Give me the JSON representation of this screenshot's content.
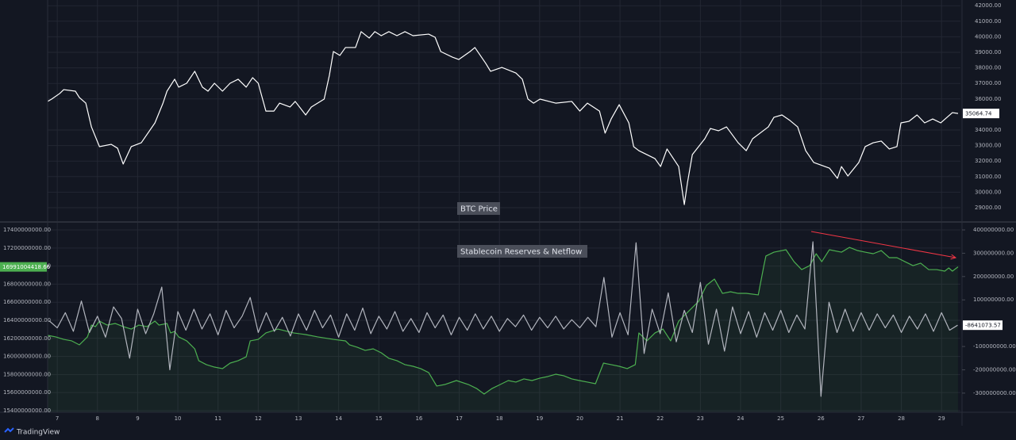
{
  "chart_data": [
    {
      "type": "line",
      "title": "BTC Price",
      "color": "#ffffff",
      "x": [
        6.76,
        6.86,
        7.06,
        7.16,
        7.45,
        7.55,
        7.71,
        7.85,
        8.05,
        8.34,
        8.5,
        8.64,
        8.84,
        9.09,
        9.43,
        9.63,
        9.73,
        9.92,
        10.02,
        10.22,
        10.42,
        10.61,
        10.75,
        10.91,
        11.11,
        11.3,
        11.5,
        11.7,
        11.86,
        12.0,
        12.19,
        12.39,
        12.53,
        12.79,
        12.92,
        13.18,
        13.32,
        13.64,
        13.77,
        13.87,
        14.03,
        14.17,
        14.42,
        14.56,
        14.76,
        14.9,
        15.06,
        15.25,
        15.45,
        15.65,
        15.85,
        16.24,
        16.4,
        16.54,
        16.83,
        16.99,
        17.27,
        17.39,
        17.66,
        17.78,
        18.06,
        18.41,
        18.57,
        18.71,
        18.85,
        19.01,
        19.4,
        19.8,
        20.0,
        20.19,
        20.49,
        20.63,
        20.78,
        20.98,
        21.22,
        21.34,
        21.47,
        21.87,
        22.01,
        22.17,
        22.46,
        22.6,
        22.68,
        22.8,
        23.11,
        23.25,
        23.45,
        23.65,
        23.94,
        24.14,
        24.3,
        24.69,
        24.83,
        25.03,
        25.23,
        25.42,
        25.62,
        25.82,
        26.21,
        26.41,
        26.51,
        26.67,
        26.94,
        27.1,
        27.3,
        27.5,
        27.7,
        27.89,
        27.99,
        28.19,
        28.39,
        28.58,
        28.78,
        28.98,
        29.27,
        29.41
      ],
      "values": [
        35840,
        35990,
        36350,
        36600,
        36500,
        36090,
        35730,
        34200,
        32930,
        33080,
        32830,
        31810,
        32930,
        33180,
        34460,
        35730,
        36500,
        37270,
        36760,
        37010,
        37780,
        36760,
        36500,
        37010,
        36500,
        37010,
        37270,
        36760,
        37370,
        37010,
        35220,
        35220,
        35730,
        35480,
        35840,
        34970,
        35480,
        35990,
        37520,
        39050,
        38800,
        39310,
        39310,
        40330,
        39920,
        40330,
        40070,
        40330,
        40070,
        40330,
        40070,
        40170,
        39970,
        39050,
        38690,
        38540,
        39050,
        39310,
        38290,
        37780,
        38030,
        37670,
        37270,
        35990,
        35730,
        35990,
        35730,
        35840,
        35220,
        35730,
        35220,
        33800,
        34710,
        35630,
        34460,
        32930,
        32670,
        32160,
        31650,
        32780,
        31650,
        29200,
        30630,
        32420,
        33440,
        34100,
        33950,
        34200,
        33180,
        32670,
        33440,
        34200,
        34820,
        34970,
        34610,
        34200,
        32670,
        31910,
        31550,
        30890,
        31650,
        31040,
        31910,
        32930,
        33180,
        33290,
        32780,
        32930,
        34460,
        34560,
        34970,
        34460,
        34710,
        34460,
        35120,
        35064.74
      ],
      "ylim": [
        28082,
        42367
      ],
      "yticks": [
        {
          "value": 29000,
          "label": "29000.00"
        },
        {
          "value": 30000,
          "label": "30000.00"
        },
        {
          "value": 31000,
          "label": "31000.00"
        },
        {
          "value": 32000,
          "label": "32000.00"
        },
        {
          "value": 33000,
          "label": "33000.00"
        },
        {
          "value": 34000,
          "label": "34000.00"
        },
        {
          "value": 36000,
          "label": "36000.00"
        },
        {
          "value": 37000,
          "label": "37000.00"
        },
        {
          "value": 38000,
          "label": "38000.00"
        },
        {
          "value": 39000,
          "label": "39000.00"
        },
        {
          "value": 40000,
          "label": "40000.00"
        },
        {
          "value": 41000,
          "label": "41000.00"
        },
        {
          "value": 42000,
          "label": "42000.00"
        }
      ],
      "grid": true
    },
    {
      "type": "line",
      "title": "Stablecoin Reserves & Netflow",
      "xlim": [
        6.76,
        29.47
      ],
      "xticks": [
        7,
        8,
        9,
        10,
        11,
        12,
        13,
        14,
        15,
        16,
        17,
        18,
        19,
        20,
        21,
        22,
        23,
        24,
        25,
        26,
        27,
        28,
        29
      ],
      "ylim": [
        15382000000,
        17488000000
      ],
      "yticks": [
        {
          "value": 15400000000,
          "label": "15400000000.00"
        },
        {
          "value": 15600000000,
          "label": "15600000000.00"
        },
        {
          "value": 15800000000,
          "label": "15800000000.00"
        },
        {
          "value": 16000000000,
          "label": "16000000000.00"
        },
        {
          "value": 16200000000,
          "label": "16200000000.00"
        },
        {
          "value": 16400000000,
          "label": "16400000000.00"
        },
        {
          "value": 16600000000,
          "label": "16600000000.00"
        },
        {
          "value": 16800000000,
          "label": "16800000000.00"
        },
        {
          "value": 17000000000,
          "label": "17000000000.00"
        },
        {
          "value": 17200000000,
          "label": "17200000000.00"
        },
        {
          "value": 17400000000,
          "label": "17400000000.00"
        }
      ],
      "y2lim": [
        -382000000,
        434000000
      ],
      "y2ticks": [
        {
          "value": -300000000,
          "label": "-300000000.00"
        },
        {
          "value": -200000000,
          "label": "-200000000.00"
        },
        {
          "value": -100000000,
          "label": "-100000000.00"
        },
        {
          "value": 100000000,
          "label": "100000000.00"
        },
        {
          "value": 200000000,
          "label": "200000000.00"
        },
        {
          "value": 300000000,
          "label": "300000000.00"
        },
        {
          "value": 400000000,
          "label": "400000000.00"
        }
      ],
      "grid": true,
      "series": [
        {
          "color": "#4caf50",
          "area": true,
          "x": [
            6.76,
            6.96,
            7.16,
            7.36,
            7.55,
            7.75,
            7.85,
            7.95,
            8.05,
            8.24,
            8.44,
            8.64,
            8.84,
            9.03,
            9.23,
            9.43,
            9.53,
            9.73,
            9.82,
            9.92,
            10.02,
            10.22,
            10.32,
            10.42,
            10.52,
            10.71,
            10.91,
            11.11,
            11.3,
            11.5,
            11.7,
            11.8,
            12.0,
            12.19,
            12.49,
            12.88,
            13.18,
            13.48,
            13.87,
            14.17,
            14.27,
            14.46,
            14.66,
            14.86,
            15.06,
            15.25,
            15.45,
            15.65,
            15.85,
            16.04,
            16.24,
            16.44,
            16.64,
            16.93,
            17.23,
            17.43,
            17.62,
            17.82,
            18.02,
            18.22,
            18.41,
            18.61,
            18.81,
            19.01,
            19.2,
            19.4,
            19.6,
            19.8,
            19.99,
            20.19,
            20.39,
            20.59,
            20.78,
            20.98,
            21.18,
            21.38,
            21.47,
            21.67,
            21.87,
            22.07,
            22.26,
            22.46,
            22.56,
            22.76,
            22.96,
            23.15,
            23.35,
            23.55,
            23.75,
            23.94,
            24.14,
            24.44,
            24.58,
            24.63,
            24.83,
            25.13,
            25.33,
            25.52,
            25.72,
            25.88,
            26.02,
            26.21,
            26.51,
            26.71,
            26.91,
            27.1,
            27.3,
            27.5,
            27.7,
            27.89,
            28.09,
            28.29,
            28.48,
            28.68,
            28.88,
            29.08,
            29.18,
            29.27,
            29.41
          ],
          "values": [
            16233000000,
            16216000000,
            16189000000,
            16172000000,
            16128000000,
            16216000000,
            16347000000,
            16330000000,
            16391000000,
            16347000000,
            16365000000,
            16330000000,
            16303000000,
            16347000000,
            16330000000,
            16391000000,
            16347000000,
            16365000000,
            16260000000,
            16277000000,
            16216000000,
            16172000000,
            16128000000,
            16084000000,
            15953000000,
            15909000000,
            15882000000,
            15865000000,
            15926000000,
            15953000000,
            15996000000,
            16172000000,
            16189000000,
            16260000000,
            16303000000,
            16260000000,
            16242000000,
            16216000000,
            16189000000,
            16172000000,
            16128000000,
            16102000000,
            16067000000,
            16084000000,
            16040000000,
            15979000000,
            15953000000,
            15909000000,
            15891000000,
            15865000000,
            15821000000,
            15672000000,
            15689000000,
            15733000000,
            15689000000,
            15646000000,
            15584000000,
            15646000000,
            15689000000,
            15733000000,
            15716000000,
            15751000000,
            15733000000,
            15760000000,
            15777000000,
            15803000000,
            15786000000,
            15751000000,
            15733000000,
            15716000000,
            15698000000,
            15926000000,
            15909000000,
            15891000000,
            15865000000,
            15909000000,
            16260000000,
            16172000000,
            16260000000,
            16303000000,
            16172000000,
            16391000000,
            16435000000,
            16523000000,
            16611000000,
            16786000000,
            16856000000,
            16698000000,
            16716000000,
            16698000000,
            16698000000,
            16681000000,
            17005000000,
            17111000000,
            17154000000,
            17181000000,
            17049000000,
            16961000000,
            17005000000,
            17137000000,
            17049000000,
            17181000000,
            17154000000,
            17207000000,
            17172000000,
            17154000000,
            17137000000,
            17172000000,
            17093000000,
            17093000000,
            17049000000,
            17005000000,
            17032000000,
            16961000000,
            16961000000,
            16944000000,
            16979000000,
            16944000000,
            16991004418.66
          ]
        },
        {
          "color": "#b2b5be",
          "axis": "y2",
          "x": [
            6.8,
            7.0,
            7.2,
            7.4,
            7.6,
            7.8,
            8.0,
            8.2,
            8.4,
            8.6,
            8.8,
            9.0,
            9.2,
            9.4,
            9.6,
            9.8,
            10.0,
            10.2,
            10.4,
            10.6,
            10.8,
            11.0,
            11.2,
            11.4,
            11.6,
            11.8,
            12.0,
            12.2,
            12.4,
            12.6,
            12.8,
            13.0,
            13.2,
            13.4,
            13.6,
            13.8,
            14.0,
            14.2,
            14.4,
            14.6,
            14.8,
            15.0,
            15.2,
            15.4,
            15.6,
            15.8,
            16.0,
            16.2,
            16.4,
            16.6,
            16.8,
            17.0,
            17.2,
            17.4,
            17.6,
            17.8,
            18.0,
            18.2,
            18.4,
            18.6,
            18.8,
            19.0,
            19.2,
            19.4,
            19.6,
            19.8,
            20.0,
            20.2,
            20.4,
            20.6,
            20.8,
            21.0,
            21.2,
            21.4,
            21.6,
            21.8,
            22.0,
            22.2,
            22.4,
            22.6,
            22.8,
            23.0,
            23.2,
            23.4,
            23.6,
            23.8,
            24.0,
            24.2,
            24.4,
            24.6,
            24.8,
            25.0,
            25.2,
            25.4,
            25.6,
            25.8,
            26.0,
            26.2,
            26.4,
            26.6,
            26.8,
            27.0,
            27.2,
            27.4,
            27.6,
            27.8,
            28.0,
            28.2,
            28.4,
            28.6,
            28.8,
            29.0,
            29.2,
            29.4
          ],
          "values": [
            10000000,
            -20000000,
            45000000,
            -35000000,
            95000000,
            -40000000,
            30000000,
            -60000000,
            70000000,
            20000000,
            -150000000,
            60000000,
            -45000000,
            40000000,
            155000000,
            -200000000,
            50000000,
            -30000000,
            60000000,
            -25000000,
            40000000,
            -50000000,
            55000000,
            -20000000,
            30000000,
            110000000,
            -40000000,
            45000000,
            -35000000,
            25000000,
            -55000000,
            40000000,
            -30000000,
            55000000,
            -20000000,
            35000000,
            -60000000,
            40000000,
            -30000000,
            65000000,
            -45000000,
            30000000,
            -25000000,
            50000000,
            -35000000,
            20000000,
            -40000000,
            45000000,
            -20000000,
            35000000,
            -50000000,
            25000000,
            -30000000,
            40000000,
            -25000000,
            30000000,
            -35000000,
            20000000,
            -15000000,
            35000000,
            -30000000,
            25000000,
            -20000000,
            30000000,
            -25000000,
            15000000,
            -20000000,
            25000000,
            -15000000,
            196000000,
            -60000000,
            45000000,
            -50000000,
            345000000,
            -130000000,
            60000000,
            -45000000,
            130000000,
            -80000000,
            55000000,
            -40000000,
            175000000,
            -90000000,
            60000000,
            -120000000,
            70000000,
            -45000000,
            50000000,
            -60000000,
            45000000,
            -30000000,
            55000000,
            -40000000,
            35000000,
            -25000000,
            349000000,
            -314000000,
            90000000,
            -40000000,
            60000000,
            -35000000,
            45000000,
            -30000000,
            40000000,
            -20000000,
            35000000,
            -40000000,
            30000000,
            -25000000,
            40000000,
            -35000000,
            45000000,
            -30000000,
            -8641073.57
          ]
        }
      ]
    }
  ],
  "branding": "TradingView"
}
